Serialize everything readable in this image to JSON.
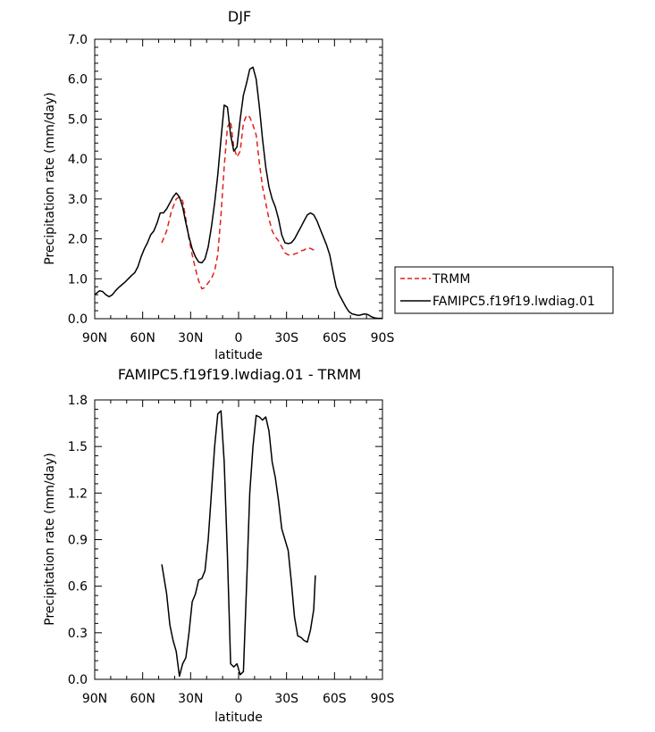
{
  "chart_data": [
    {
      "type": "line",
      "title": "DJF",
      "xlabel": "latitude",
      "ylabel": "Precipitation rate (mm/day)",
      "xlim": [
        90,
        -90
      ],
      "ylim": [
        0,
        7
      ],
      "x_ticks": [
        90,
        60,
        30,
        0,
        -30,
        -60,
        -90
      ],
      "x_tick_labels": [
        "90N",
        "60N",
        "30N",
        "0",
        "30S",
        "60S",
        "90S"
      ],
      "y_ticks": [
        0,
        1,
        2,
        3,
        4,
        5,
        6,
        7
      ],
      "y_tick_labels": [
        "0.0",
        "1.0",
        "2.0",
        "3.0",
        "4.0",
        "5.0",
        "6.0",
        "7.0"
      ],
      "grid": false,
      "legend_position": "right",
      "series": [
        {
          "name": "TRMM",
          "color": "#e0201b",
          "dash": true,
          "x": [
            48,
            45,
            42,
            39,
            37,
            35,
            33,
            31,
            29,
            27,
            25,
            23,
            21,
            19,
            17,
            15,
            13,
            11,
            9,
            7,
            5,
            3,
            1,
            -1,
            -3,
            -5,
            -7,
            -9,
            -11,
            -13,
            -15,
            -17,
            -19,
            -21,
            -23,
            -25,
            -27,
            -29,
            -31,
            -33,
            -35,
            -37,
            -39,
            -41,
            -43,
            -45,
            -47,
            -48
          ],
          "values": [
            1.9,
            2.2,
            2.7,
            3.0,
            3.05,
            2.95,
            2.5,
            2.0,
            1.6,
            1.25,
            0.95,
            0.75,
            0.78,
            0.9,
            1.0,
            1.2,
            1.6,
            2.6,
            3.8,
            4.8,
            4.95,
            4.3,
            4.05,
            4.2,
            4.9,
            5.1,
            5.05,
            4.85,
            4.6,
            3.9,
            3.3,
            2.9,
            2.5,
            2.2,
            2.05,
            1.95,
            1.8,
            1.65,
            1.6,
            1.6,
            1.62,
            1.65,
            1.7,
            1.72,
            1.78,
            1.76,
            1.72,
            1.7
          ]
        },
        {
          "name": "FAMIPC5.f19f19.lwdiag.01",
          "color": "#000000",
          "dash": false,
          "x": [
            90,
            87,
            85,
            83,
            81,
            79,
            77,
            75,
            73,
            71,
            69,
            67,
            65,
            63,
            61,
            59,
            57,
            55,
            53,
            51,
            49,
            47,
            45,
            43,
            41,
            39,
            37,
            35,
            33,
            31,
            29,
            27,
            25,
            23,
            21,
            19,
            17,
            15,
            13,
            11,
            9,
            7,
            5,
            3,
            1,
            -1,
            -3,
            -5,
            -7,
            -9,
            -11,
            -13,
            -15,
            -17,
            -19,
            -21,
            -23,
            -25,
            -27,
            -29,
            -31,
            -33,
            -35,
            -37,
            -39,
            -41,
            -43,
            -45,
            -47,
            -49,
            -51,
            -53,
            -55,
            -57,
            -59,
            -61,
            -63,
            -65,
            -67,
            -69,
            -71,
            -73,
            -75,
            -77,
            -79,
            -81,
            -83,
            -85,
            -87,
            -90
          ],
          "values": [
            0.6,
            0.7,
            0.68,
            0.6,
            0.55,
            0.6,
            0.7,
            0.78,
            0.85,
            0.92,
            1.0,
            1.08,
            1.15,
            1.3,
            1.55,
            1.75,
            1.9,
            2.1,
            2.2,
            2.4,
            2.65,
            2.65,
            2.75,
            2.9,
            3.05,
            3.15,
            3.05,
            2.8,
            2.4,
            2.05,
            1.75,
            1.55,
            1.42,
            1.4,
            1.5,
            1.8,
            2.3,
            2.9,
            3.6,
            4.5,
            5.35,
            5.3,
            4.6,
            4.2,
            4.3,
            5.0,
            5.6,
            5.9,
            6.25,
            6.3,
            6.0,
            5.3,
            4.5,
            3.8,
            3.3,
            3.0,
            2.8,
            2.5,
            2.1,
            1.9,
            1.88,
            1.9,
            2.0,
            2.15,
            2.3,
            2.45,
            2.6,
            2.65,
            2.6,
            2.45,
            2.25,
            2.05,
            1.85,
            1.6,
            1.2,
            0.8,
            0.6,
            0.45,
            0.3,
            0.18,
            0.12,
            0.1,
            0.08,
            0.1,
            0.12,
            0.1,
            0.05,
            0.02,
            0.01,
            0.01
          ]
        }
      ]
    },
    {
      "type": "line",
      "title": "FAMIPC5.f19f19.lwdiag.01 - TRMM",
      "xlabel": "latitude",
      "ylabel": "Precipitation rate (mm/day)",
      "xlim": [
        90,
        -90
      ],
      "ylim": [
        0,
        1.8
      ],
      "x_ticks": [
        90,
        60,
        30,
        0,
        -30,
        -60,
        -90
      ],
      "x_tick_labels": [
        "90N",
        "60N",
        "30N",
        "0",
        "30S",
        "60S",
        "90S"
      ],
      "y_ticks": [
        0,
        0.3,
        0.6,
        0.9,
        1.2,
        1.5,
        1.8
      ],
      "y_tick_labels": [
        "0.0",
        "0.3",
        "0.6",
        "0.9",
        "1.2",
        "1.5",
        "1.8"
      ],
      "grid": false,
      "series": [
        {
          "color": "#000000",
          "dash": false,
          "x": [
            48,
            45,
            43,
            41,
            39,
            37,
            35,
            33,
            31,
            29,
            27,
            25,
            23,
            21,
            19,
            17,
            15,
            13,
            11,
            9,
            7,
            5,
            3,
            1,
            -1,
            -3,
            -5,
            -7,
            -9,
            -11,
            -13,
            -15,
            -17,
            -19,
            -21,
            -23,
            -25,
            -27,
            -29,
            -31,
            -33,
            -35,
            -37,
            -39,
            -41,
            -43,
            -45,
            -47,
            -48
          ],
          "values": [
            0.74,
            0.55,
            0.35,
            0.25,
            0.18,
            0.02,
            0.1,
            0.14,
            0.3,
            0.5,
            0.55,
            0.64,
            0.65,
            0.7,
            0.9,
            1.2,
            1.5,
            1.71,
            1.73,
            1.4,
            0.8,
            0.1,
            0.08,
            0.1,
            0.03,
            0.05,
            0.6,
            1.2,
            1.5,
            1.7,
            1.69,
            1.67,
            1.69,
            1.6,
            1.4,
            1.3,
            1.15,
            0.97,
            0.9,
            0.83,
            0.63,
            0.4,
            0.28,
            0.27,
            0.25,
            0.24,
            0.32,
            0.45,
            0.67
          ]
        }
      ]
    }
  ]
}
